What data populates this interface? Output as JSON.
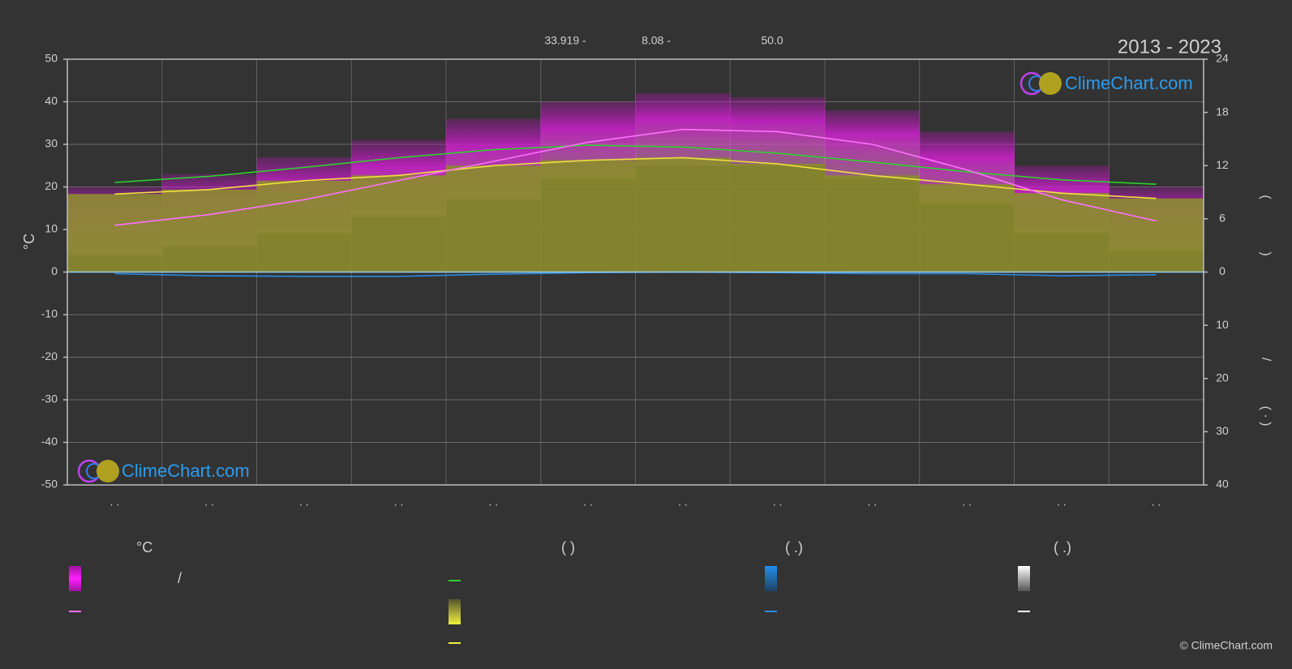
{
  "chart_data": {
    "type": "line",
    "title": "2013 - 2023",
    "subtitle_parts": [
      "33.919 -",
      "8.08 -",
      "50.0"
    ],
    "y_label": "°C",
    "y2_label_parts": [
      "(",
      ")"
    ],
    "y3_label_parts": [
      "/",
      "( · )"
    ],
    "categories": [
      ". .",
      ". .",
      ". .",
      ". .",
      ". .",
      ". .",
      ". .",
      ". .",
      ". .",
      ". .",
      ". .",
      ". ."
    ],
    "ylim": [
      -50,
      50
    ],
    "yticks": [
      -50,
      -40,
      -30,
      -20,
      -10,
      0,
      10,
      20,
      30,
      40,
      50
    ],
    "y2lim": [
      -24,
      24
    ],
    "y2ticks": [
      0,
      6,
      12,
      18,
      24
    ],
    "y3lim": [
      40,
      -40
    ],
    "y3ticks": [
      10,
      20,
      30,
      40
    ],
    "grid": true,
    "series": [
      {
        "kind": "band",
        "axis": "y",
        "color": "#d020d0",
        "values": [
          20,
          23,
          27,
          31,
          36,
          40,
          42,
          41,
          38,
          33,
          25,
          20
        ],
        "low": [
          4,
          6,
          9,
          13,
          17,
          22,
          25,
          25,
          22,
          16,
          9,
          5
        ]
      },
      {
        "kind": "area",
        "axis": "y2",
        "color": "#f0e040",
        "fill": "#8c8c2e",
        "values": [
          8.8,
          9.3,
          10.3,
          10.9,
          12.0,
          12.6,
          12.9,
          12.2,
          10.9,
          9.9,
          8.9,
          8.3
        ]
      },
      {
        "kind": "line",
        "axis": "y2",
        "color": "#30d030",
        "values": [
          10.1,
          10.8,
          11.8,
          12.9,
          13.8,
          14.3,
          14.1,
          13.4,
          12.4,
          11.3,
          10.4,
          9.9
        ]
      },
      {
        "kind": "line",
        "axis": "y",
        "color": "#ff70ff",
        "values": [
          11,
          13.5,
          17,
          21.5,
          26,
          30.5,
          33.5,
          33,
          30,
          24,
          17,
          12
        ]
      },
      {
        "kind": "line",
        "axis": "y3",
        "color": "#2a8ae0",
        "values": [
          0.3,
          0.7,
          0.8,
          0.8,
          0.4,
          0.1,
          0.0,
          0.1,
          0.3,
          0.3,
          0.7,
          0.5
        ]
      }
    ],
    "legend_headers": [
      "°C",
      "(          )",
      "(   .)",
      "(   .)"
    ],
    "legend_item_texts": [
      "/"
    ],
    "watermark": "ClimeChart.com",
    "copyright": "© ClimeChart.com"
  }
}
